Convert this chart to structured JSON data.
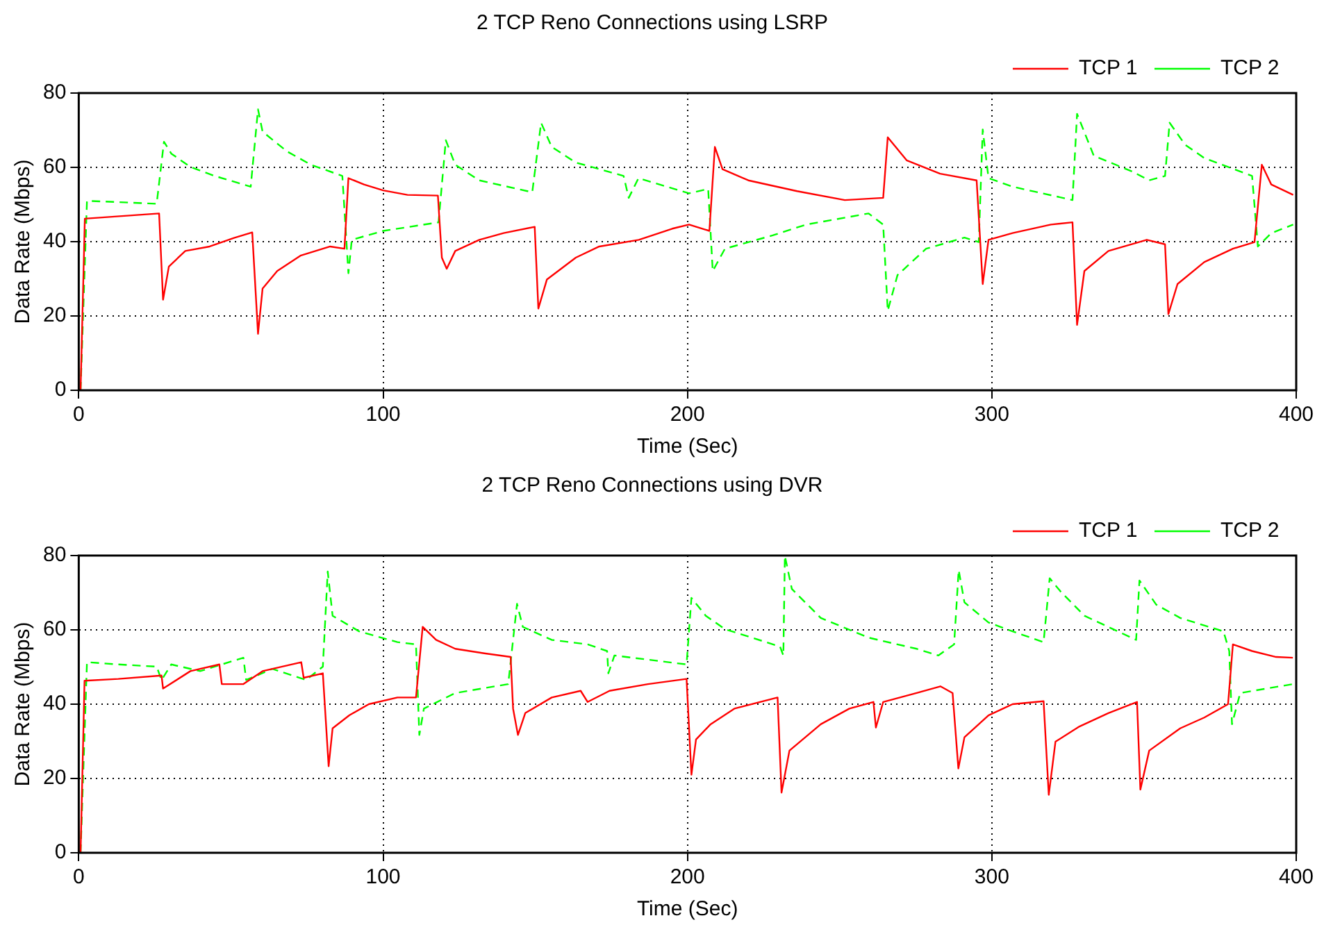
{
  "chart_data": [
    {
      "type": "line",
      "title": "2 TCP Reno Connections using LSRP",
      "xlabel": "Time (Sec)",
      "ylabel": "Data Rate (Mbps)",
      "xlim": [
        0,
        400
      ],
      "xticks": [
        0,
        100,
        200,
        300,
        400
      ],
      "ylim": [
        0,
        80
      ],
      "yticks": [
        0,
        20,
        40,
        60,
        80
      ],
      "grid": true,
      "legend": "top right",
      "series": [
        {
          "name": "TCP 1",
          "color": "#ff0000",
          "line_style": "solid",
          "x": [
            0.6,
            2,
            26.4,
            27.7,
            29.6,
            35,
            43,
            51,
            57,
            58.9,
            60.4,
            65.2,
            73,
            82.6,
            87.3,
            88.6,
            93.7,
            100,
            108,
            118,
            119.3,
            120.9,
            123.7,
            131.6,
            139.6,
            149.8,
            151,
            153.8,
            163.3,
            171,
            184,
            195,
            200.5,
            207.2,
            209,
            211.5,
            220,
            236,
            251.7,
            264.3,
            265.8,
            272,
            283,
            295,
            297,
            298.9,
            306.8,
            319.4,
            326.5,
            328,
            330.4,
            338.3,
            350.9,
            356.9,
            358,
            361,
            369.8,
            379.2,
            386.3,
            388.7,
            391.8,
            399
          ],
          "values": [
            0,
            46.2,
            47.6,
            24.4,
            33.3,
            37.5,
            38.7,
            41,
            42.5,
            15.2,
            27.4,
            32.1,
            36.3,
            38.7,
            38.1,
            57.1,
            55.4,
            53.8,
            52.6,
            52.4,
            35.7,
            32.7,
            37.5,
            40.5,
            42.3,
            44,
            22,
            29.8,
            35.7,
            38.7,
            40.5,
            43.5,
            44.6,
            42.9,
            65.5,
            59.5,
            56.5,
            53.6,
            51.2,
            51.8,
            68.1,
            61.9,
            58.3,
            56.5,
            28.6,
            40.5,
            42.3,
            44.6,
            45.2,
            17.6,
            32.1,
            37.5,
            40.5,
            39.3,
            20.5,
            28.6,
            34.5,
            38.1,
            39.9,
            60.7,
            55.4,
            52.6
          ]
        },
        {
          "name": "TCP 2",
          "color": "#00ff00",
          "line_style": "dashed",
          "x": [
            0.6,
            2.7,
            25.6,
            28,
            30.4,
            36.7,
            44.6,
            56.5,
            58.9,
            60.4,
            68.4,
            76.3,
            86.6,
            88.6,
            89.7,
            100,
            118.2,
            120.6,
            123.7,
            131.6,
            149,
            151.9,
            155.4,
            163.3,
            171.2,
            179,
            180.7,
            183.9,
            200.5,
            206.8,
            208.3,
            212.3,
            228,
            239,
            259.5,
            264.3,
            265.8,
            269,
            278.4,
            291,
            295.7,
            297,
            298.9,
            306.8,
            326.5,
            328,
            333.5,
            346.1,
            351.7,
            356.9,
            358.4,
            363.5,
            369.8,
            385.5,
            387.4,
            391.8,
            399
          ],
          "values": [
            0,
            51,
            50.2,
            66.9,
            63.7,
            60.1,
            57.7,
            54.8,
            75.6,
            69.6,
            64.3,
            60.7,
            57.7,
            31.5,
            40.5,
            42.9,
            45.2,
            67.3,
            60.7,
            56.5,
            53.3,
            72,
            65.5,
            61.3,
            59.5,
            57.7,
            51.8,
            57.1,
            53,
            54.2,
            32.1,
            38.1,
            41.7,
            44.6,
            47.6,
            44.6,
            21.4,
            31,
            38.1,
            41.1,
            39.9,
            70.2,
            57.1,
            54.8,
            51.2,
            74.4,
            63.1,
            58.9,
            56.5,
            57.7,
            72,
            66.1,
            62.5,
            57.7,
            38.7,
            42.3,
            44.6
          ]
        }
      ]
    },
    {
      "type": "line",
      "title": "2 TCP Reno Connections using DVR",
      "xlabel": "Time (Sec)",
      "ylabel": "Data Rate (Mbps)",
      "xlim": [
        0,
        400
      ],
      "xticks": [
        0,
        100,
        200,
        300,
        400
      ],
      "ylim": [
        0,
        80
      ],
      "yticks": [
        0,
        20,
        40,
        60,
        80
      ],
      "grid": true,
      "legend": "top right",
      "series": [
        {
          "name": "TCP 1",
          "color": "#ff0000",
          "line_style": "solid",
          "x": [
            0.6,
            1.9,
            13,
            27.2,
            27.7,
            36.7,
            46.2,
            47,
            54.1,
            60.4,
            73.1,
            73.9,
            80.2,
            82.1,
            83.4,
            88.9,
            95.3,
            104.7,
            110.8,
            113,
            117.4,
            123.7,
            133.2,
            141.9,
            142.7,
            144.3,
            146.7,
            155.4,
            164.9,
            167.2,
            174.4,
            187,
            199.7,
            201.3,
            202.8,
            207.6,
            215.4,
            229.6,
            230.9,
            233.5,
            243.8,
            253.2,
            261.1,
            261.9,
            264.3,
            275.3,
            283.1,
            287.1,
            289,
            291,
            298.9,
            306.8,
            317,
            318.7,
            320.9,
            328.8,
            338.3,
            347.7,
            348.8,
            351.7,
            361.9,
            369.8,
            377.6,
            379.2,
            385.5,
            393.4,
            398.9
          ],
          "values": [
            0,
            46.3,
            46.8,
            47.7,
            44.2,
            48.9,
            50.7,
            45.4,
            45.4,
            48.9,
            51.3,
            47.1,
            48.3,
            23.3,
            33.5,
            37,
            40,
            41.8,
            41.8,
            60.8,
            57.3,
            54.9,
            53.7,
            52.7,
            38.8,
            31.7,
            37.6,
            41.8,
            43.6,
            40.6,
            43.6,
            45.4,
            46.8,
            21,
            30.5,
            34.6,
            38.8,
            41.8,
            16.2,
            27.5,
            34.6,
            38.8,
            40.6,
            33.7,
            40.6,
            43,
            44.8,
            43,
            22.7,
            31.1,
            37,
            40,
            40.8,
            15.6,
            29.9,
            34,
            37.6,
            40.6,
            17,
            27.5,
            33.5,
            36.4,
            40,
            56.1,
            54.3,
            52.7,
            52.5
          ]
        },
        {
          "name": "TCP 2",
          "color": "#00ff00",
          "line_style": "dashed",
          "x": [
            0.6,
            2.7,
            13,
            25.6,
            27.2,
            30.4,
            39.9,
            54.1,
            55,
            63.6,
            74.7,
            80.2,
            81.8,
            83.4,
            92.1,
            104.7,
            110.8,
            111.9,
            113.4,
            123.7,
            141.1,
            144,
            145.9,
            155.4,
            167.2,
            173.6,
            174,
            176,
            199.7,
            201.3,
            206,
            212.3,
            230.4,
            231.5,
            232,
            234.3,
            243.8,
            259.5,
            275.3,
            282.4,
            287.6,
            289.1,
            291,
            298.9,
            306.8,
            317,
            319,
            322.5,
            330.4,
            347.4,
            348.5,
            354,
            361.9,
            376.1,
            378,
            378.9,
            381.6,
            398.9
          ],
          "values": [
            0,
            51.3,
            50.7,
            50.1,
            46.5,
            50.7,
            48.9,
            52.5,
            46.5,
            49.5,
            46.5,
            50.1,
            75.7,
            63.8,
            59.6,
            56.7,
            56.1,
            31.7,
            38.8,
            43,
            45.4,
            67,
            60.8,
            57.3,
            56.1,
            54.3,
            48.3,
            53.1,
            50.7,
            68.6,
            63.8,
            60.2,
            55.5,
            53.1,
            79.9,
            71,
            63.2,
            57.9,
            54.9,
            53.1,
            56.1,
            76.1,
            67.4,
            62,
            59.6,
            56.7,
            73.9,
            70.4,
            63.8,
            57.3,
            73.3,
            66.8,
            63.2,
            59.6,
            54.3,
            34.6,
            43,
            45.4
          ]
        }
      ]
    }
  ]
}
